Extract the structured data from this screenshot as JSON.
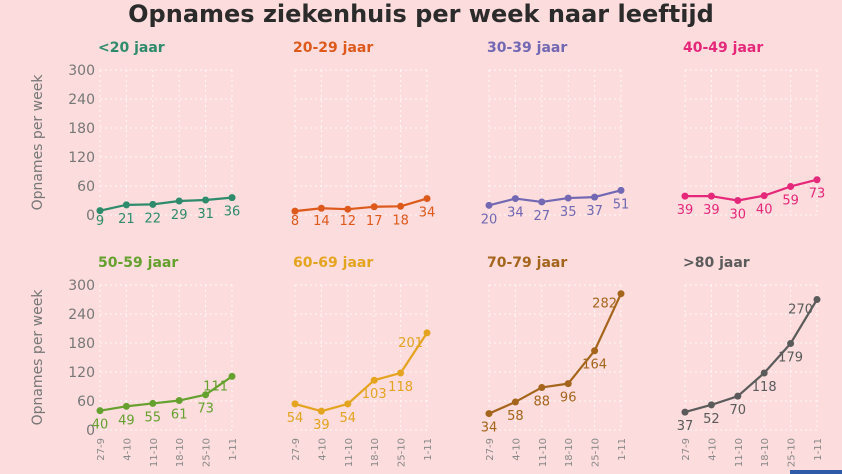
{
  "title": "Opnames ziekenhuis per week naar leeftijd",
  "ylabel": "Opnames per week",
  "ylim": [
    0,
    300
  ],
  "yticks": [
    0,
    60,
    120,
    180,
    240,
    300
  ],
  "categories": [
    "27-9",
    "4-10",
    "11-10",
    "18-10",
    "25-10",
    "1-11"
  ],
  "chart_data": {
    "type": "line",
    "title": "Opnames ziekenhuis per week naar leeftijd",
    "ylabel": "Opnames per week",
    "ylim": [
      0,
      300
    ],
    "categories": [
      "27-9",
      "4-10",
      "11-10",
      "18-10",
      "25-10",
      "1-11"
    ],
    "series": [
      {
        "name": "<20 jaar",
        "color": "#2e8b6b",
        "values": [
          9,
          21,
          22,
          29,
          31,
          36
        ]
      },
      {
        "name": "20-29 jaar",
        "color": "#dd5a1c",
        "values": [
          8,
          14,
          12,
          17,
          18,
          34
        ]
      },
      {
        "name": "30-39 jaar",
        "color": "#7268b4",
        "values": [
          20,
          34,
          27,
          35,
          37,
          51
        ]
      },
      {
        "name": "40-49 jaar",
        "color": "#e6287a",
        "values": [
          39,
          39,
          30,
          40,
          59,
          73
        ]
      },
      {
        "name": "50-59 jaar",
        "color": "#66a12f",
        "values": [
          40,
          49,
          55,
          61,
          73,
          111
        ]
      },
      {
        "name": "60-69 jaar",
        "color": "#e5a420",
        "values": [
          54,
          39,
          54,
          103,
          118,
          201
        ]
      },
      {
        "name": "70-79 jaar",
        "color": "#a6651c",
        "values": [
          34,
          58,
          88,
          96,
          164,
          282
        ]
      },
      {
        "name": ">80 jaar",
        "color": "#5b5b5b",
        "values": [
          37,
          52,
          70,
          118,
          179,
          270
        ]
      }
    ]
  }
}
